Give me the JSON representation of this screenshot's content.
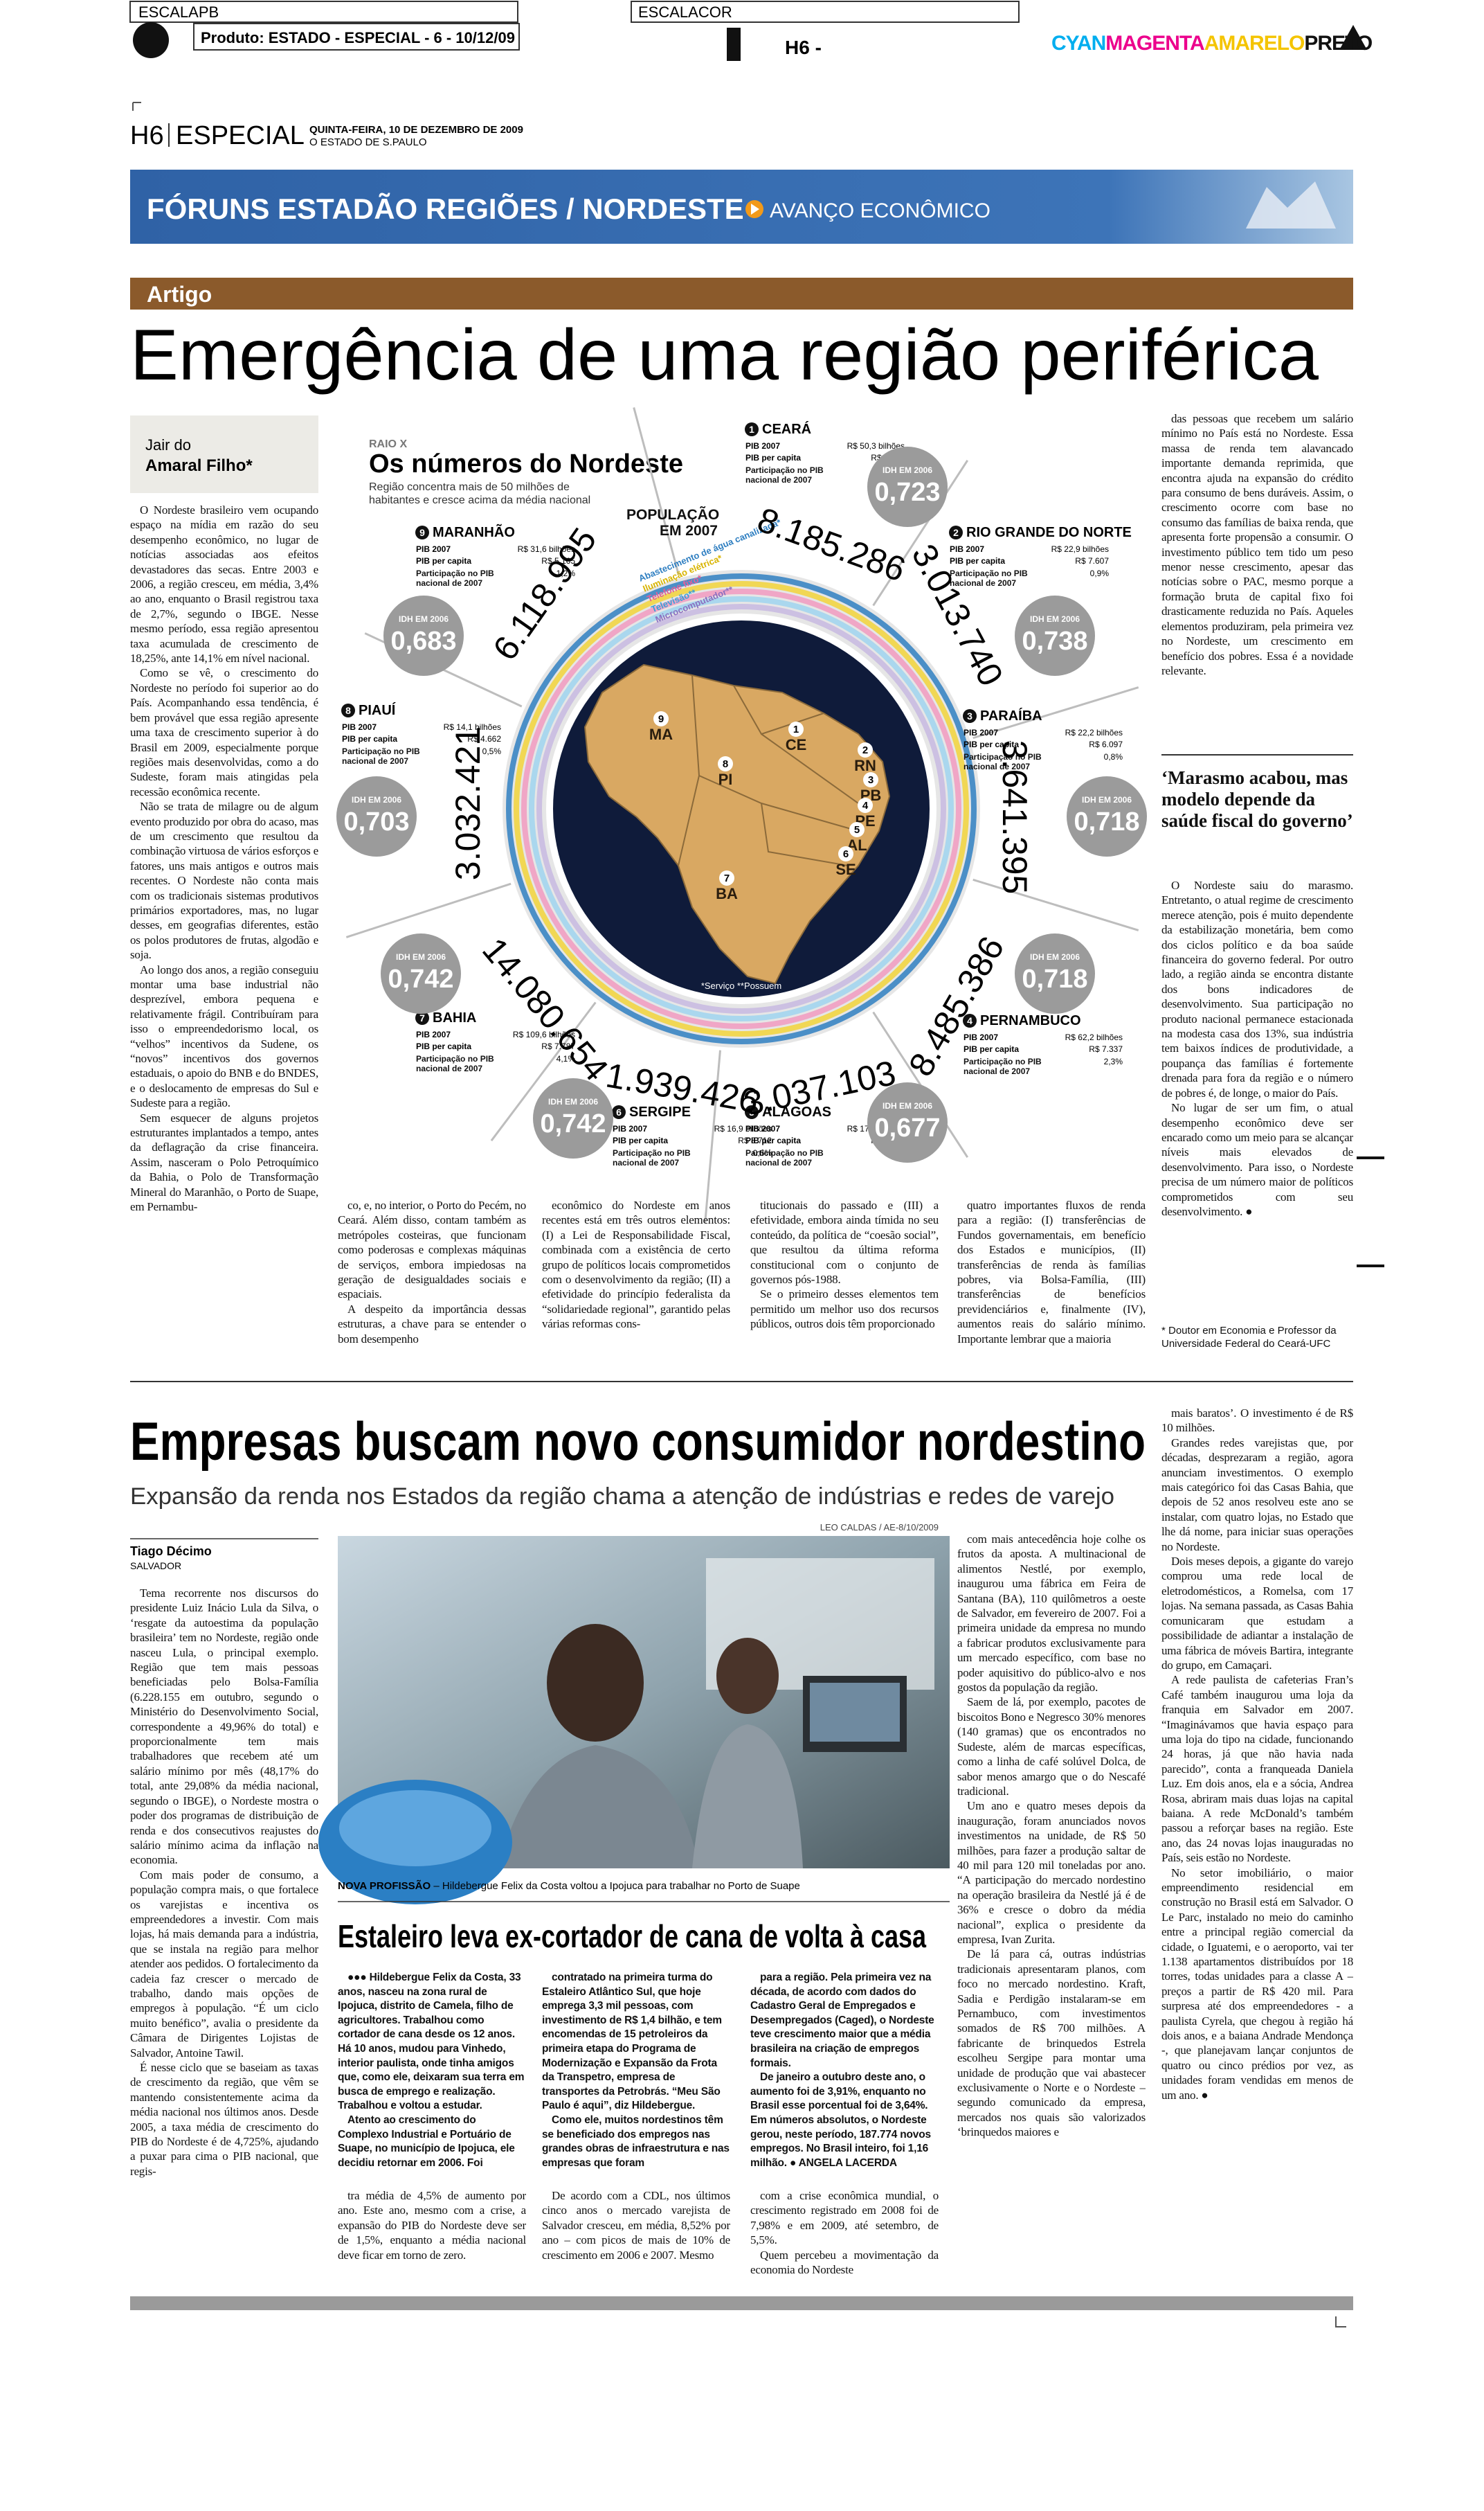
{
  "top_bar": {
    "escala_pb": "ESCALAPB",
    "produto": "Produto: ESTADO - ESPECIAL - 6 - 10/12/09",
    "escala_cor": "ESCALACOR",
    "page": "H6 -",
    "cyan": "CYAN",
    "magenta": "MAGENTA",
    "amarelo": "AMARELO",
    "preto": "PRETO"
  },
  "header": {
    "page": "H6",
    "section": "ESPECIAL",
    "date": "QUINTA-FEIRA, 10 DE DEZEMBRO DE 2009",
    "paper": "O ESTADO DE S.PAULO"
  },
  "banner": {
    "title": "FÓRUNS ESTADÃO REGIÕES / NORDESTE",
    "subtitle": "AVANÇO ECONÔMICO"
  },
  "article1": {
    "section": "Artigo",
    "headline": "Emergência de uma região periférica",
    "author_line1": "Jair do",
    "author_line2": "Amaral Filho*",
    "columns": [
      [
        "O Nordeste brasileiro vem ocupando espaço na mídia em razão do seu desempenho econômico, no lugar de notícias associadas aos efeitos devastadores das secas. Entre 2003 e 2006, a região cresceu, em média, 3,4% ao ano, enquanto o Brasil registrou taxa de 2,7%, segundo o IBGE. Nesse mesmo período, essa região apresentou taxa acumulada de crescimento de 18,25%, ante 14,1% em nível nacional.",
        "Como se vê, o crescimento do Nordeste no período foi superior ao do País. Acompanhando essa tendência, é bem provável que essa região apresente uma taxa de crescimento superior à do Brasil em 2009, especialmente porque regiões mais desenvolvidas, como a do Sudeste, foram mais atingidas pela recessão econômica recente.",
        "Não se trata de milagre ou de algum evento produzido por obra do acaso, mas de um crescimento que resultou da combinação virtuosa de vários esforços e fatores, uns mais antigos e outros mais recentes. O Nordeste não conta mais com os tradicionais sistemas produtivos primários exportadores, mas, no lugar desses, em geografias diferentes, estão os polos produtores de frutas, algodão e soja.",
        "Ao longo dos anos, a região conseguiu montar uma base industrial não desprezível, embora pequena e relativamente frágil. Contribuíram para isso o empreendedorismo local, os “velhos” incentivos da Sudene, os “novos” incentivos dos governos estaduais, o apoio do BNB e do BNDES, e o deslocamento de empresas do Sul e Sudeste para a região.",
        "Sem esquecer de alguns projetos estruturantes implantados a tempo, antes da deflagração da crise financeira. Assim, nasceram o Polo Petroquímico da Bahia, o Polo de Transformação Mineral do Maranhão, o Porto de Suape, em Pernambu-"
      ],
      [
        "co, e, no interior, o Porto do Pecém, no Ceará. Além disso, contam também as metrópoles costeiras, que funcionam como poderosas e complexas máquinas de serviços, embora impiedosas na geração de desigualdades sociais e espaciais.",
        "A despeito da importância dessas estruturas, a chave para se entender o bom desempenho"
      ],
      [
        "econômico do Nordeste em anos recentes está em três outros elementos: (I) a Lei de Responsabilidade Fiscal, combinada com a existência de certo grupo de políticos locais comprometidos com o desenvolvimento da região; (II) a efetividade do princípio federalista da “solidariedade regional”, garantido pelas várias reformas cons-"
      ],
      [
        "titucionais do passado e (III) a efetividade, embora ainda tímida no seu conteúdo, da política de “coesão social”, que resultou da última reforma constitucional com o conjunto de governos pós-1988.",
        "Se o primeiro desses elementos tem permitido um melhor uso dos recursos públicos, outros dois têm proporcionado"
      ],
      [
        "quatro importantes fluxos de renda para a região: (I) transferências de Fundos governamentais, em benefício dos Estados e municípios, (II) transferências de renda às famílias pobres, via Bolsa-Família, (III) transferências de benefícios previdenciários e, finalmente (IV), aumentos reais do salário mínimo. Importante lembrar que a maioria"
      ],
      [
        "das pessoas que recebem um salário mínimo no País está no Nordeste. Essa massa de renda tem alavancado importante demanda reprimida, que encontra ajuda na expansão do crédito para consumo de bens duráveis. Assim, o crescimento ocorre com base no consumo das famílias de baixa renda, que apresenta forte propensão a consumir. O investimento público tem tido um peso menor nesse crescimento, apesar das notícias sobre o PAC, mesmo porque a formação bruta de capital fixo foi drasticamente reduzida no País. Aqueles elementos produziram, pela primeira vez no Nordeste, um crescimento em benefício dos pobres. Essa é a novidade relevante."
      ],
      [
        "O Nordeste saiu do marasmo. Entretanto, o atual regime de crescimento merece atenção, pois é muito dependente da estabilização monetária, bem como dos ciclos político e da boa saúde financeira do governo federal. Por outro lado, a região ainda se encontra distante dos bons indicadores de desenvolvimento. Sua participação no produto nacional permanece estacionada na modesta casa dos 13%, sua indústria tem baixos índices de produtividade, a poupança das famílias é fortemente drenada para fora da região e o número de pobres é, de longe, o maior do País.",
        "No lugar de ser um fim, o atual desempenho econômico deve ser encarado como um meio para se alcançar níveis mais elevados de desenvolvimento. Para isso, o Nordeste precisa de um número maior de políticos comprometidos com seu desenvolvimento. ●"
      ]
    ],
    "pull_quote": "‘Marasmo acabou, mas modelo depende da saúde fiscal do governo’",
    "footnote": "* Doutor em Economia e Professor da Universidade Federal do Ceará-UFC"
  },
  "infographic": {
    "kicker": "RAIO X",
    "title": "Os números do Nordeste",
    "subtitle": "Região concentra mais de 50 milhões de habitantes e cresce acima da média nacional",
    "population_label": "POPULAÇÃO EM 2007",
    "labels": {
      "pib": "PIB 2007",
      "per_capita": "PIB per capita",
      "participacao": "Participação no PIB nacional de 2007",
      "idh": "IDH EM 2006"
    },
    "ring_legend": [
      "Abastecimento de água canalizada*",
      "Iluminação elétrica*",
      "Telefone fixo*",
      "Televisão**",
      "Microcomputador**"
    ],
    "legend_note": "*Serviço  **Possuem",
    "states": [
      {
        "number": "1",
        "name": "CEARÁ",
        "abbr": "CE",
        "pib": "R$ 50,3 bilhões",
        "per_capita": "R$ 6.149",
        "participacao": "1,9%",
        "idh": "0,723",
        "population": "8.185.286"
      },
      {
        "number": "2",
        "name": "RIO GRANDE DO NORTE",
        "abbr": "RN",
        "pib": "R$ 22,9 bilhões",
        "per_capita": "R$ 7.607",
        "participacao": "0,9%",
        "idh": "0,738",
        "population": "3.013.740"
      },
      {
        "number": "3",
        "name": "PARAÍBA",
        "abbr": "PB",
        "pib": "R$ 22,2 bilhões",
        "per_capita": "R$ 6.097",
        "participacao": "0,8%",
        "idh": "0,718",
        "population": "3.641.395"
      },
      {
        "number": "4",
        "name": "PERNAMBUCO",
        "abbr": "PE",
        "pib": "R$ 62,2 bilhões",
        "per_capita": "R$ 7.337",
        "participacao": "2,3%",
        "idh": "0,718",
        "population": "8.485.386"
      },
      {
        "number": "5",
        "name": "ALAGOAS",
        "abbr": "AL",
        "pib": "R$ 17,8 bilhões",
        "per_capita": "R$ 5.858",
        "participacao": "0,7%",
        "idh": "0,677",
        "population": "3.037.103"
      },
      {
        "number": "6",
        "name": "SERGIPE",
        "abbr": "SE",
        "pib": "R$ 16,9 bilhões",
        "per_capita": "R$ 8.712",
        "participacao": "0,6%",
        "idh": "0,742",
        "population": "1.939.426"
      },
      {
        "number": "7",
        "name": "BAHIA",
        "abbr": "BA",
        "pib": "R$ 109,6 bilhões",
        "per_capita": "R$ 7.787",
        "participacao": "4,1%",
        "idh": "0,742",
        "population": "14.080.654"
      },
      {
        "number": "8",
        "name": "PIAUÍ",
        "abbr": "PI",
        "pib": "R$ 14,1 bilhões",
        "per_capita": "R$ 4.662",
        "participacao": "0,5%",
        "idh": "0,703",
        "population": "3.032.421"
      },
      {
        "number": "9",
        "name": "MARANHÃO",
        "abbr": "MA",
        "pib": "R$ 31,6 bilhões",
        "per_capita": "R$ 5.165",
        "participacao": "1,2%",
        "idh": "0,683",
        "population": "6.118.995"
      }
    ]
  },
  "article2": {
    "headline": "Empresas buscam novo consumidor nordestino",
    "subtitle": "Expansão da renda nos Estados da região chama a atenção de indústrias e redes de varejo",
    "author": "Tiago Décimo",
    "location": "SALVADOR",
    "photo_credit": "LEO CALDAS / AE-8/10/2009",
    "caption_label": "NOVA PROFISSÃO",
    "caption": " – Hildebergue Felix da Costa voltou a Ipojuca para trabalhar no Porto de Suape",
    "columns": [
      [
        "Tema recorrente nos discursos do presidente Luiz Inácio Lula da Silva, o ‘resgate da autoestima da população brasileira’ tem no Nordeste, região onde nasceu Lula, o principal exemplo. Região que tem mais pessoas beneficiadas pelo Bolsa-Família (6.228.155 em outubro, segundo o Ministério do Desenvolvimento Social, correspondente a 49,96% do total) e proporcionalmente tem mais trabalhadores que recebem até um salário mínimo por mês (48,17% do total, ante 29,08% da média nacional, segundo o IBGE), o Nordeste mostra o poder dos programas de distribuição de renda e dos consecutivos reajustes do salário mínimo acima da inflação na economia.",
        "Com mais poder de consumo, a população compra mais, o que fortalece os varejistas e incentiva os empreendedores a investir. Com mais lojas, há mais demanda para a indústria, que se instala na região para melhor atender aos pedidos. O fortalecimento da cadeia faz crescer o mercado de trabalho, dando mais opções de empregos à população. “É um ciclo muito benéfico”, avalia o presidente da Câmara de Dirigentes Lojistas de Salvador, Antoine Tawil.",
        "É nesse ciclo que se baseiam as taxas de crescimento da região, que vêm se mantendo consistentemente acima da média nacional nos últimos anos. Desde 2005, a taxa média de crescimento do PIB do Nordeste é de 4,725%, ajudando a puxar para cima o PIB nacional, que regis-"
      ],
      [
        "tra média de 4,5% de aumento por ano. Este ano, mesmo com a crise, a expansão do PIB do Nordeste deve ser de 1,5%, enquanto a média nacional deve ficar em torno de zero."
      ],
      [
        "De acordo com a CDL, nos últimos cinco anos o mercado varejista de Salvador cresceu, em média, 8,52% por ano – com picos de mais de 10% de crescimento em 2006 e 2007. Mesmo"
      ],
      [
        "com a crise econômica mundial, o crescimento registrado em 2008 foi de 7,98% e em 2009, até setembro, de 5,5%.",
        "Quem percebeu a movimentação da economia do Nordeste"
      ],
      [
        "com mais antecedência hoje colhe os frutos da aposta. A multinacional de alimentos Nestlé, por exemplo, inaugurou uma fábrica em Feira de Santana (BA), 110 quilômetros a oeste de Salvador, em fevereiro de 2007. Foi a primeira unidade da empresa no mundo a fabricar produtos exclusivamente para um mercado específico, com base no poder aquisitivo do público-alvo e nos gostos da população da região.",
        "Saem de lá, por exemplo, pacotes de biscoitos Bono e Negresco 30% menores (140 gramas) que os encontrados no Sudeste, além de marcas específicas, como a linha de café solúvel Dolca, de sabor menos amargo que o do Nescafé tradicional.",
        "Um ano e quatro meses depois da inauguração, foram anunciados novos investimentos na unidade, de R$ 50 milhões, para fazer a produção saltar de 40 mil para 120 mil toneladas por ano. “A participação do mercado nordestino na operação brasileira da Nestlé já é de 36% e cresce o dobro da média nacional”, explica o presidente da empresa, Ivan Zurita.",
        "De lá para cá, outras indústrias tradicionais apresentaram planos, com foco no mercado nordestino. Kraft, Sadia e Perdigão instalaram-se em Pernambuco, com investimentos somados de R$ 700 milhões. A fabricante de brinquedos Estrela escolheu Sergipe para montar uma unidade de produção que vai abastecer exclusivamente o Norte e o Nordeste – segundo comunicado da empresa, mercados nos quais são valorizados ‘brinquedos maiores e"
      ],
      [
        "mais baratos’. O investimento é de R$ 10 milhões.",
        "Grandes redes varejistas que, por décadas, desprezaram a região, agora anunciam investimentos. O exemplo mais categórico foi das Casas Bahia, que depois de 52 anos resolveu este ano se instalar, com quatro lojas, no Estado que lhe dá nome, para iniciar suas operações no Nordeste.",
        "Dois meses depois, a gigante do varejo comprou uma rede local de eletrodomésticos, a Romelsa, com 17 lojas. Na semana passada, as Casas Bahia comunicaram que estudam a possibilidade de adiantar a instalação de uma fábrica de móveis Bartira, integrante do grupo, em Camaçari.",
        "A rede paulista de cafeterias Fran’s Café também inaugurou uma loja da franquia em Salvador em 2007. “Imaginávamos que havia espaço para uma loja do tipo na cidade, funcionando 24 horas, já que não havia nada parecido”, conta a franqueada Daniela Luz. Em dois anos, ela e a sócia, Andrea Rosa, abriram mais duas lojas na capital baiana. A rede McDonald’s também passou a reforçar bases na região. Este ano, das 24 novas lojas inauguradas no País, seis estão no Nordeste.",
        "No setor imobiliário, o maior empreendimento residencial em construção no Brasil está em Salvador. O Le Parc, instalado no meio do caminho entre a principal região comercial da cidade, o Iguatemi, e o aeroporto, vai ter 1.138 apartamentos distribuídos por 18 torres, todas unidades para a classe A – preços a partir de R$ 420 mil. Para surpresa até dos empreendedores - a paulista Cyrela, que chegou à região há dois anos, e a baiana Andrade Mendonça -, que planejavam lançar conjuntos de quatro ou cinco prédios por vez, as unidades foram vendidas em menos de um ano. ●"
      ]
    ],
    "sidebar": {
      "headline": "Estaleiro leva ex-cortador de cana de volta à casa",
      "columns": [
        [
          "●●● Hildebergue Felix da Costa, 33 anos, nasceu na zona rural de Ipojuca, distrito de Camela, filho de agricultores. Trabalhou como cortador de cana desde os 12 anos. Há 10 anos, mudou para Vinhedo, interior paulista, onde tinha amigos que, como ele, deixaram sua terra em busca de emprego e realização. Trabalhou e voltou a estudar.",
          "Atento ao crescimento do Complexo Industrial e Portuário de Suape, no município de Ipojuca, ele decidiu retornar em 2006. Foi"
        ],
        [
          "contratado na primeira turma do Estaleiro Atlântico Sul, que hoje emprega 3,3 mil pessoas, com investimento de R$ 1,4 bilhão, e tem encomendas de 15 petroleiros da primeira etapa do Programa de Modernização e Expansão da Frota da Transpetro, empresa de transportes da Petrobrás. “Meu São Paulo é aqui”, diz Hildebergue.",
          "Como ele, muitos nordestinos têm se beneficiado dos empregos nas grandes obras de infraestrutura e nas empresas que foram"
        ],
        [
          "para a região. Pela primeira vez na década, de acordo com dados do Cadastro Geral de Empregados e Desempregados (Caged), o Nordeste teve crescimento maior que a média brasileira na criação de empregos formais.",
          "De janeiro a outubro deste ano, o aumento foi de 3,91%, enquanto no Brasil esse porcentual foi de 3,64%. Em números absolutos, o Nordeste gerou, neste período, 187.774 novos empregos. No Brasil inteiro, foi 1,16 milhão. ● ANGELA LACERDA"
        ]
      ]
    }
  }
}
